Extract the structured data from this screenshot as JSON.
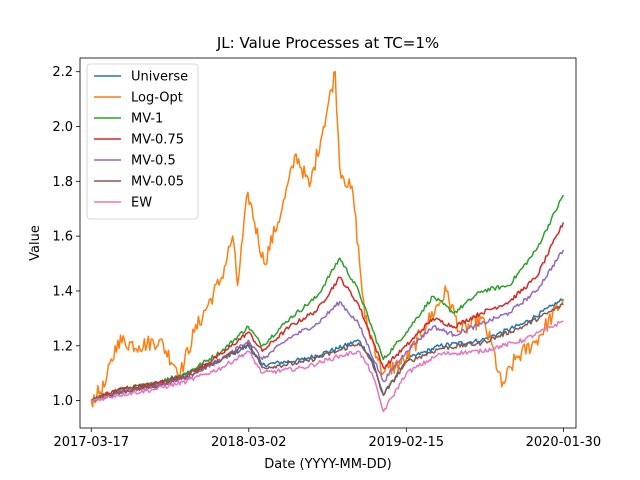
{
  "chart_data": {
    "type": "line",
    "title": "JL: Value Processes at TC=1%",
    "xlabel": "Date (YYYY-MM-DD)",
    "ylabel": "Value",
    "x_range": [
      "2017-02-20",
      "2020-02-27"
    ],
    "ylim": [
      0.9,
      2.25
    ],
    "x_ticks": [
      "2017-03-17",
      "2018-03-02",
      "2019-02-15",
      "2020-01-30"
    ],
    "y_ticks": [
      1.0,
      1.2,
      1.4,
      1.6,
      1.8,
      2.0,
      2.2
    ],
    "grid": false,
    "legend_position": "upper-left",
    "series": [
      {
        "name": "Universe",
        "color": "#1f77b4",
        "points": [
          [
            "2017-03-17",
            1.0
          ],
          [
            "2017-05-15",
            1.03
          ],
          [
            "2017-08-01",
            1.06
          ],
          [
            "2017-10-15",
            1.1
          ],
          [
            "2018-01-01",
            1.15
          ],
          [
            "2018-03-01",
            1.2
          ],
          [
            "2018-04-01",
            1.13
          ],
          [
            "2018-07-01",
            1.15
          ],
          [
            "2018-09-15",
            1.19
          ],
          [
            "2018-11-01",
            1.22
          ],
          [
            "2018-12-01",
            1.15
          ],
          [
            "2018-12-26",
            1.02
          ],
          [
            "2019-02-15",
            1.15
          ],
          [
            "2019-05-01",
            1.2
          ],
          [
            "2019-08-01",
            1.22
          ],
          [
            "2019-11-01",
            1.28
          ],
          [
            "2020-01-30",
            1.37
          ]
        ]
      },
      {
        "name": "Log-Opt",
        "color": "#ff7f0e",
        "points": [
          [
            "2017-03-17",
            1.0
          ],
          [
            "2017-04-15",
            1.05
          ],
          [
            "2017-05-15",
            1.22
          ],
          [
            "2017-07-01",
            1.2
          ],
          [
            "2017-08-15",
            1.22
          ],
          [
            "2017-10-01",
            1.1
          ],
          [
            "2017-11-01",
            1.25
          ],
          [
            "2018-01-01",
            1.45
          ],
          [
            "2018-01-25",
            1.6
          ],
          [
            "2018-02-05",
            1.42
          ],
          [
            "2018-02-28",
            1.76
          ],
          [
            "2018-04-05",
            1.5
          ],
          [
            "2018-05-15",
            1.7
          ],
          [
            "2018-06-15",
            1.9
          ],
          [
            "2018-07-15",
            1.78
          ],
          [
            "2018-08-15",
            2.0
          ],
          [
            "2018-09-10",
            2.2
          ],
          [
            "2018-09-20",
            1.85
          ],
          [
            "2018-10-20",
            1.75
          ],
          [
            "2018-11-15",
            1.3
          ],
          [
            "2018-12-26",
            1.1
          ],
          [
            "2019-02-15",
            1.15
          ],
          [
            "2019-04-01",
            1.28
          ],
          [
            "2019-05-15",
            1.4
          ],
          [
            "2019-06-15",
            1.25
          ],
          [
            "2019-08-01",
            1.3
          ],
          [
            "2019-08-25",
            1.2
          ],
          [
            "2019-09-15",
            1.05
          ],
          [
            "2019-10-15",
            1.15
          ],
          [
            "2019-12-01",
            1.22
          ],
          [
            "2020-01-30",
            1.37
          ]
        ]
      },
      {
        "name": "MV-1",
        "color": "#2ca02c",
        "points": [
          [
            "2017-03-17",
            1.0
          ],
          [
            "2017-05-15",
            1.04
          ],
          [
            "2017-08-01",
            1.06
          ],
          [
            "2017-10-15",
            1.1
          ],
          [
            "2018-01-01",
            1.18
          ],
          [
            "2018-03-01",
            1.27
          ],
          [
            "2018-04-01",
            1.2
          ],
          [
            "2018-06-01",
            1.3
          ],
          [
            "2018-08-01",
            1.38
          ],
          [
            "2018-09-20",
            1.52
          ],
          [
            "2018-11-01",
            1.4
          ],
          [
            "2018-12-26",
            1.15
          ],
          [
            "2019-02-15",
            1.25
          ],
          [
            "2019-04-15",
            1.38
          ],
          [
            "2019-06-01",
            1.32
          ],
          [
            "2019-08-01",
            1.4
          ],
          [
            "2019-10-01",
            1.42
          ],
          [
            "2019-12-01",
            1.55
          ],
          [
            "2020-01-30",
            1.75
          ]
        ]
      },
      {
        "name": "MV-0.75",
        "color": "#d62728",
        "points": [
          [
            "2017-03-17",
            1.0
          ],
          [
            "2017-05-15",
            1.04
          ],
          [
            "2017-08-01",
            1.06
          ],
          [
            "2017-10-15",
            1.09
          ],
          [
            "2018-01-01",
            1.17
          ],
          [
            "2018-03-01",
            1.25
          ],
          [
            "2018-04-01",
            1.18
          ],
          [
            "2018-06-01",
            1.27
          ],
          [
            "2018-08-01",
            1.33
          ],
          [
            "2018-09-20",
            1.45
          ],
          [
            "2018-11-01",
            1.35
          ],
          [
            "2018-12-26",
            1.12
          ],
          [
            "2019-02-15",
            1.2
          ],
          [
            "2019-04-15",
            1.3
          ],
          [
            "2019-06-01",
            1.27
          ],
          [
            "2019-08-01",
            1.32
          ],
          [
            "2019-10-01",
            1.36
          ],
          [
            "2019-12-01",
            1.45
          ],
          [
            "2020-01-30",
            1.65
          ]
        ]
      },
      {
        "name": "MV-0.5",
        "color": "#9467bd",
        "points": [
          [
            "2017-03-17",
            1.0
          ],
          [
            "2017-05-15",
            1.03
          ],
          [
            "2017-08-01",
            1.05
          ],
          [
            "2017-10-15",
            1.08
          ],
          [
            "2018-01-01",
            1.15
          ],
          [
            "2018-03-01",
            1.22
          ],
          [
            "2018-04-01",
            1.15
          ],
          [
            "2018-06-01",
            1.23
          ],
          [
            "2018-08-01",
            1.28
          ],
          [
            "2018-09-20",
            1.36
          ],
          [
            "2018-11-01",
            1.28
          ],
          [
            "2018-12-26",
            1.07
          ],
          [
            "2019-02-15",
            1.18
          ],
          [
            "2019-04-15",
            1.27
          ],
          [
            "2019-06-01",
            1.24
          ],
          [
            "2019-08-01",
            1.28
          ],
          [
            "2019-10-01",
            1.32
          ],
          [
            "2019-12-01",
            1.4
          ],
          [
            "2020-01-30",
            1.55
          ]
        ]
      },
      {
        "name": "MV-0.05",
        "color": "#8c564b",
        "points": [
          [
            "2017-03-17",
            1.0
          ],
          [
            "2017-05-15",
            1.03
          ],
          [
            "2017-08-01",
            1.05
          ],
          [
            "2017-10-15",
            1.09
          ],
          [
            "2018-01-01",
            1.15
          ],
          [
            "2018-03-01",
            1.21
          ],
          [
            "2018-04-01",
            1.12
          ],
          [
            "2018-07-01",
            1.14
          ],
          [
            "2018-09-15",
            1.18
          ],
          [
            "2018-11-01",
            1.21
          ],
          [
            "2018-12-01",
            1.14
          ],
          [
            "2018-12-26",
            1.02
          ],
          [
            "2019-02-15",
            1.14
          ],
          [
            "2019-05-01",
            1.19
          ],
          [
            "2019-08-01",
            1.21
          ],
          [
            "2019-11-01",
            1.27
          ],
          [
            "2020-01-30",
            1.35
          ]
        ]
      },
      {
        "name": "EW",
        "color": "#e377c2",
        "points": [
          [
            "2017-03-17",
            1.0
          ],
          [
            "2017-05-15",
            1.02
          ],
          [
            "2017-08-01",
            1.04
          ],
          [
            "2017-10-15",
            1.07
          ],
          [
            "2018-01-01",
            1.12
          ],
          [
            "2018-03-01",
            1.18
          ],
          [
            "2018-04-01",
            1.1
          ],
          [
            "2018-07-01",
            1.12
          ],
          [
            "2018-09-15",
            1.16
          ],
          [
            "2018-11-01",
            1.18
          ],
          [
            "2018-12-01",
            1.1
          ],
          [
            "2018-12-26",
            0.96
          ],
          [
            "2019-02-15",
            1.1
          ],
          [
            "2019-05-01",
            1.17
          ],
          [
            "2019-08-01",
            1.18
          ],
          [
            "2019-11-01",
            1.22
          ],
          [
            "2020-01-30",
            1.29
          ]
        ]
      }
    ]
  }
}
